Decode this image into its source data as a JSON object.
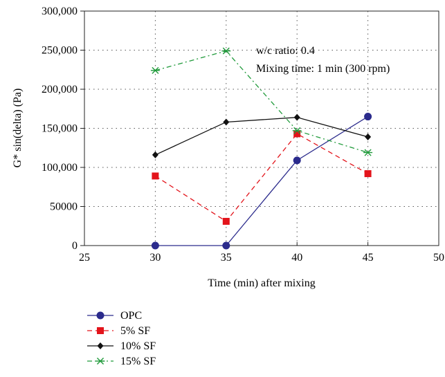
{
  "chart_data": {
    "type": "line",
    "xlabel": "Time (min) after mixing",
    "ylabel": "G* sin(delta) (Pa)",
    "xlim": [
      25,
      50
    ],
    "ylim": [
      0,
      300000
    ],
    "x_ticks": [
      25,
      30,
      35,
      40,
      45,
      50
    ],
    "x_tick_labels": [
      "25",
      "30",
      "35",
      "40",
      "45",
      "50"
    ],
    "y_ticks": [
      0,
      50000,
      100000,
      150000,
      200000,
      250000,
      300000
    ],
    "y_tick_labels": [
      "0",
      "50000",
      "100,000",
      "150,000",
      "200,000",
      "250,000",
      "300,000"
    ],
    "grid": "dotted",
    "annotations": [
      "w/c ratio: 0.4",
      "Mixing time: 1 min (300 rpm)"
    ],
    "legend_position": "bottom-left",
    "series": [
      {
        "name": "OPC",
        "color": "#2b2b8c",
        "line": "solid",
        "marker": "circle",
        "x": [
          30,
          35,
          40,
          45
        ],
        "y": [
          0,
          0,
          109000,
          165000
        ]
      },
      {
        "name": "5% SF",
        "color": "#e3141b",
        "line": "dashed",
        "marker": "square",
        "x": [
          30,
          35,
          40,
          45
        ],
        "y": [
          89000,
          31000,
          143000,
          92000
        ]
      },
      {
        "name": "10% SF",
        "color": "#111111",
        "line": "solid",
        "marker": "diamond",
        "x": [
          30,
          35,
          40,
          45
        ],
        "y": [
          116000,
          158000,
          164000,
          139000
        ]
      },
      {
        "name": "15% SF",
        "color": "#1f9a3a",
        "line": "dashdot",
        "marker": "asterisk",
        "x": [
          30,
          35,
          40,
          45
        ],
        "y": [
          224000,
          249000,
          147000,
          119000
        ]
      }
    ]
  }
}
